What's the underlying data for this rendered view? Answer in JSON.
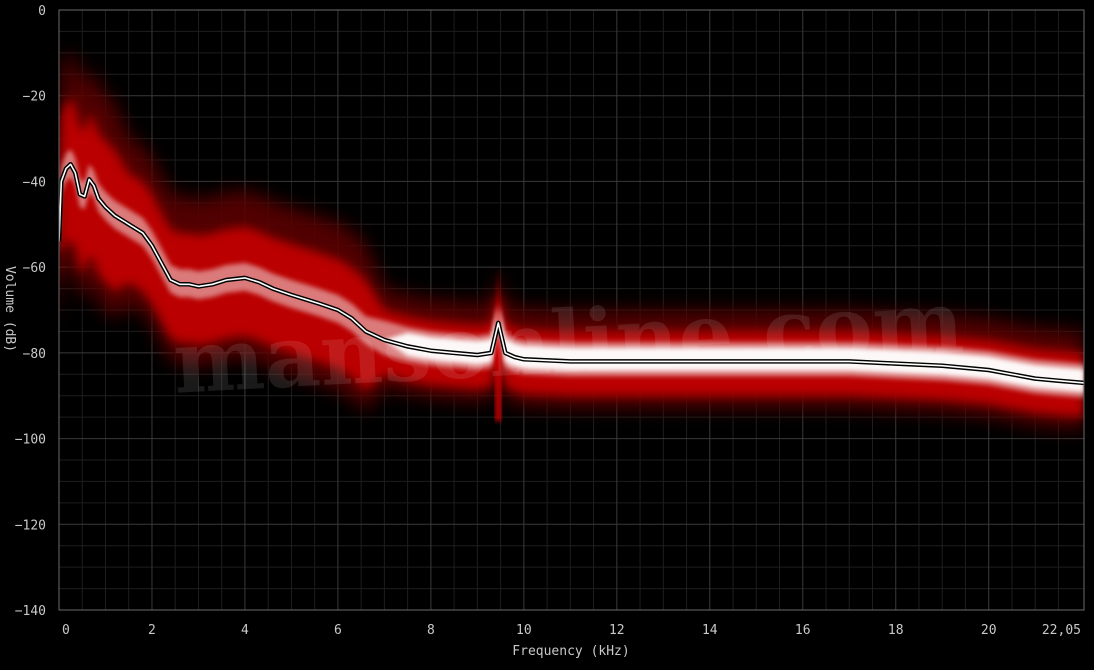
{
  "chart_data": {
    "type": "area",
    "xlabel": "Frequency (kHz)",
    "ylabel": "Volume (dB)",
    "xlim": [
      0,
      22.05
    ],
    "ylim": [
      -140,
      0
    ],
    "x_ticks": [
      {
        "v": 0,
        "label": "0"
      },
      {
        "v": 2,
        "label": "2"
      },
      {
        "v": 4,
        "label": "4"
      },
      {
        "v": 6,
        "label": "6"
      },
      {
        "v": 8,
        "label": "8"
      },
      {
        "v": 10,
        "label": "10"
      },
      {
        "v": 12,
        "label": "12"
      },
      {
        "v": 14,
        "label": "14"
      },
      {
        "v": 16,
        "label": "16"
      },
      {
        "v": 18,
        "label": "18"
      },
      {
        "v": 20,
        "label": "20"
      },
      {
        "v": 22.05,
        "label": "22,05"
      }
    ],
    "y_ticks": [
      {
        "v": 0,
        "label": "0"
      },
      {
        "v": -20,
        "label": "−20"
      },
      {
        "v": -40,
        "label": "−40"
      },
      {
        "v": -60,
        "label": "−60"
      },
      {
        "v": -80,
        "label": "−80"
      },
      {
        "v": -100,
        "label": "−100"
      },
      {
        "v": -120,
        "label": "−120"
      },
      {
        "v": -140,
        "label": "−140"
      }
    ],
    "grid": true,
    "watermark": "mansonline.com",
    "colors": {
      "background": "#000000",
      "grid": "#3a3a3a",
      "band_core": "#ffffff",
      "band_edge": "#cc0000",
      "line": "#ffffff",
      "outline": "#000000"
    },
    "average_spectrum": {
      "x": [
        0,
        0.05,
        0.15,
        0.25,
        0.35,
        0.45,
        0.55,
        0.65,
        0.75,
        0.85,
        1.0,
        1.2,
        1.5,
        1.8,
        2.0,
        2.2,
        2.4,
        2.6,
        2.8,
        3.0,
        3.3,
        3.6,
        4.0,
        4.3,
        4.6,
        5.0,
        5.3,
        5.6,
        6.0,
        6.3,
        6.6,
        7.0,
        7.5,
        8.0,
        8.5,
        9.0,
        9.3,
        9.45,
        9.6,
        9.8,
        10.0,
        11.0,
        12.0,
        13.0,
        14.0,
        15.0,
        16.0,
        17.0,
        18.0,
        19.0,
        20.0,
        20.5,
        21.0,
        21.5,
        22.05
      ],
      "y": [
        -54,
        -40,
        -37,
        -36,
        -38,
        -43,
        -43.5,
        -39.5,
        -41,
        -44,
        -46,
        -48,
        -50,
        -52,
        -55,
        -59,
        -63,
        -64,
        -64,
        -64.5,
        -64,
        -63,
        -62.5,
        -63.5,
        -65,
        -66.5,
        -67.5,
        -68.5,
        -70,
        -72,
        -75,
        -77,
        -78.5,
        -79.5,
        -80,
        -80.5,
        -80,
        -73,
        -80,
        -81,
        -81.5,
        -82,
        -82,
        -82,
        -82,
        -82,
        -82,
        -82,
        -82.5,
        -83,
        -84,
        -85,
        -86,
        -86.5,
        -87
      ]
    }
  }
}
